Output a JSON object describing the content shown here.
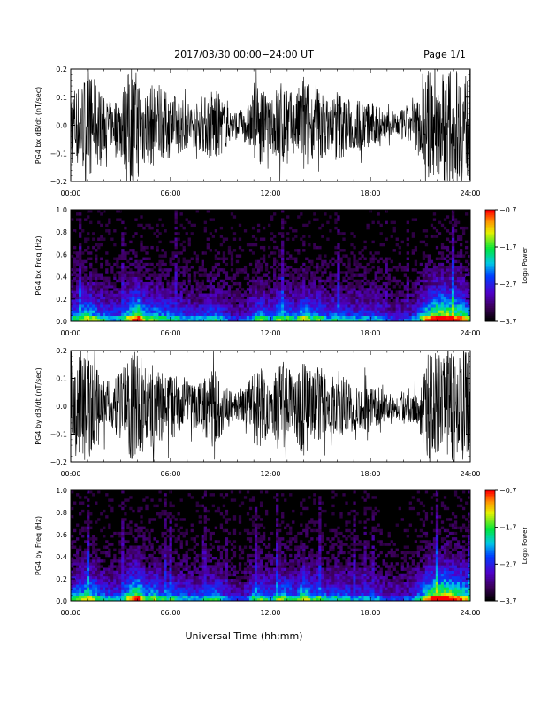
{
  "header": {
    "title": "2017/03/30  00:00−24:00 UT",
    "page": "Page 1/1"
  },
  "footer": {
    "xlabel": "Universal Time (hh:mm)"
  },
  "colors": {
    "background": "#ffffff",
    "trace": "#000000",
    "spectrogram_bg": "#000000"
  },
  "chart_data": [
    {
      "id": "bx_dbdt",
      "type": "line",
      "ylabel": "PG4 bx dB/dt (nT/sec)",
      "xlabel": "",
      "xlim": [
        0,
        24
      ],
      "ylim": [
        -0.2,
        0.2
      ],
      "x_ticks": [
        "00:00",
        "06:00",
        "12:00",
        "18:00",
        "24:00"
      ],
      "y_ticks": [
        "0.2",
        "0.1",
        "0.0",
        "−0.1",
        "−0.2"
      ],
      "y_tick_values": [
        0.2,
        0.1,
        0.0,
        -0.1,
        -0.2
      ],
      "series": [
        {
          "x": [
            0,
            0.5,
            1,
            1.5,
            2,
            2.5,
            3,
            3.5,
            4,
            4.5,
            5,
            5.5,
            6,
            6.5,
            7,
            7.5,
            8,
            8.5,
            9,
            9.5,
            10,
            10.5,
            11,
            11.5,
            12,
            12.5,
            13,
            13.5,
            14,
            14.5,
            15,
            15.5,
            16,
            16.5,
            17,
            17.5,
            18,
            18.5,
            19,
            19.5,
            20,
            20.5,
            21,
            21.5,
            22,
            22.5,
            23,
            23.5,
            24
          ],
          "envelope": [
            0.15,
            0.15,
            0.2,
            0.16,
            0.1,
            0.08,
            0.12,
            0.2,
            0.2,
            0.14,
            0.15,
            0.12,
            0.12,
            0.1,
            0.09,
            0.08,
            0.1,
            0.14,
            0.11,
            0.06,
            0.05,
            0.05,
            0.13,
            0.14,
            0.08,
            0.17,
            0.14,
            0.1,
            0.2,
            0.12,
            0.15,
            0.08,
            0.14,
            0.1,
            0.09,
            0.1,
            0.08,
            0.08,
            0.05,
            0.04,
            0.06,
            0.07,
            0.12,
            0.2,
            0.2,
            0.2,
            0.2,
            0.2,
            0.2
          ]
        }
      ]
    },
    {
      "id": "bx_freq",
      "type": "heatmap",
      "ylabel": "PG4 bx Freq (Hz)",
      "xlim": [
        0,
        24
      ],
      "ylim": [
        0,
        1.0
      ],
      "x_ticks": [
        "00:00",
        "06:00",
        "12:00",
        "18:00",
        "24:00"
      ],
      "y_ticks": [
        "1.0",
        "0.8",
        "0.6",
        "0.4",
        "0.2",
        "0.0"
      ],
      "y_tick_values": [
        1.0,
        0.8,
        0.6,
        0.4,
        0.2,
        0.0
      ],
      "colorbar": {
        "label": "Log₁₀ Power",
        "ticks": [
          "−0.7",
          "−1.7",
          "−2.7",
          "−3.7"
        ],
        "range": [
          -3.7,
          -0.7
        ]
      },
      "activity": [
        0.5,
        0.6,
        0.7,
        0.55,
        0.45,
        0.4,
        0.45,
        0.7,
        0.85,
        0.55,
        0.6,
        0.5,
        0.5,
        0.45,
        0.4,
        0.38,
        0.42,
        0.5,
        0.45,
        0.3,
        0.28,
        0.3,
        0.5,
        0.55,
        0.4,
        0.6,
        0.55,
        0.45,
        0.7,
        0.5,
        0.55,
        0.4,
        0.5,
        0.45,
        0.4,
        0.42,
        0.38,
        0.4,
        0.3,
        0.28,
        0.3,
        0.32,
        0.5,
        0.75,
        0.9,
        0.95,
        0.85,
        0.8,
        0.6
      ]
    },
    {
      "id": "by_dbdt",
      "type": "line",
      "ylabel": "PG4 by dB/dt (nT/sec)",
      "xlim": [
        0,
        24
      ],
      "ylim": [
        -0.2,
        0.2
      ],
      "x_ticks": [
        "00:00",
        "06:00",
        "12:00",
        "18:00",
        "24:00"
      ],
      "y_ticks": [
        "0.2",
        "0.1",
        "0.0",
        "−0.1",
        "−0.2"
      ],
      "y_tick_values": [
        0.2,
        0.1,
        0.0,
        -0.1,
        -0.2
      ],
      "series": [
        {
          "x": [
            0,
            0.5,
            1,
            1.5,
            2,
            2.5,
            3,
            3.5,
            4,
            4.5,
            5,
            5.5,
            6,
            6.5,
            7,
            7.5,
            8,
            8.5,
            9,
            9.5,
            10,
            10.5,
            11,
            11.5,
            12,
            12.5,
            13,
            13.5,
            14,
            14.5,
            15,
            15.5,
            16,
            16.5,
            17,
            17.5,
            18,
            18.5,
            19,
            19.5,
            20,
            20.5,
            21,
            21.5,
            22,
            22.5,
            23,
            23.5,
            24
          ],
          "envelope": [
            0.15,
            0.18,
            0.2,
            0.14,
            0.1,
            0.09,
            0.12,
            0.2,
            0.2,
            0.15,
            0.16,
            0.12,
            0.13,
            0.1,
            0.09,
            0.08,
            0.1,
            0.15,
            0.11,
            0.06,
            0.05,
            0.06,
            0.14,
            0.15,
            0.08,
            0.17,
            0.15,
            0.1,
            0.2,
            0.12,
            0.15,
            0.08,
            0.14,
            0.1,
            0.09,
            0.1,
            0.07,
            0.07,
            0.05,
            0.04,
            0.06,
            0.06,
            0.1,
            0.2,
            0.2,
            0.2,
            0.2,
            0.2,
            0.2
          ]
        }
      ]
    },
    {
      "id": "by_freq",
      "type": "heatmap",
      "ylabel": "PG4 by Freq (Hz)",
      "xlim": [
        0,
        24
      ],
      "ylim": [
        0,
        1.0
      ],
      "x_ticks": [
        "00:00",
        "06:00",
        "12:00",
        "18:00",
        "24:00"
      ],
      "y_ticks": [
        "1.0",
        "0.8",
        "0.6",
        "0.4",
        "0.2",
        "0.0"
      ],
      "y_tick_values": [
        1.0,
        0.8,
        0.6,
        0.4,
        0.2,
        0.0
      ],
      "colorbar": {
        "label": "Log₁₀ Power",
        "ticks": [
          "−0.7",
          "−1.7",
          "−2.7",
          "−3.7"
        ],
        "range": [
          -3.7,
          -0.7
        ]
      },
      "activity": [
        0.5,
        0.6,
        0.7,
        0.55,
        0.45,
        0.42,
        0.45,
        0.72,
        0.85,
        0.55,
        0.6,
        0.5,
        0.5,
        0.45,
        0.42,
        0.38,
        0.42,
        0.52,
        0.45,
        0.3,
        0.28,
        0.3,
        0.52,
        0.55,
        0.42,
        0.6,
        0.55,
        0.45,
        0.7,
        0.5,
        0.55,
        0.4,
        0.5,
        0.45,
        0.4,
        0.42,
        0.38,
        0.4,
        0.3,
        0.28,
        0.3,
        0.32,
        0.5,
        0.75,
        0.9,
        0.95,
        0.85,
        0.8,
        0.6
      ]
    }
  ]
}
